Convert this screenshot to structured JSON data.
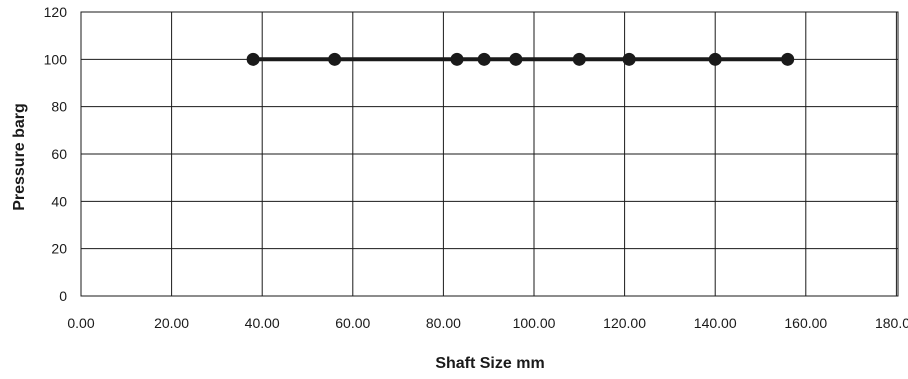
{
  "chart_data": {
    "type": "line",
    "xlabel": "Shaft Size mm",
    "ylabel": "Pressure barg",
    "xlim": [
      0,
      180
    ],
    "ylim": [
      0,
      120
    ],
    "x_ticks": [
      "0.00",
      "20.00",
      "40.00",
      "60.00",
      "80.00",
      "100.00",
      "120.00",
      "140.00",
      "160.00",
      "180.00"
    ],
    "y_ticks": [
      "0",
      "20",
      "40",
      "60",
      "80",
      "100",
      "120"
    ],
    "grid": true,
    "series": [
      {
        "x": [
          38,
          56,
          83,
          89,
          96,
          110,
          121,
          140,
          156
        ],
        "y": [
          100,
          100,
          100,
          100,
          100,
          100,
          100,
          100,
          100
        ],
        "color": "#1a1a1a"
      }
    ]
  }
}
